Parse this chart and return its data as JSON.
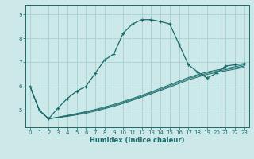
{
  "xlabel": "Humidex (Indice chaleur)",
  "bg_color": "#cce8e8",
  "grid_color": "#aad4d4",
  "line_color": "#1a6b6b",
  "xlim": [
    -0.5,
    23.5
  ],
  "ylim": [
    4.3,
    9.4
  ],
  "xticks": [
    0,
    1,
    2,
    3,
    4,
    5,
    6,
    7,
    8,
    9,
    10,
    11,
    12,
    13,
    14,
    15,
    16,
    17,
    18,
    19,
    20,
    21,
    22,
    23
  ],
  "yticks": [
    5,
    6,
    7,
    8,
    9
  ],
  "curve1_x": [
    0,
    1,
    2,
    3,
    4,
    5,
    6,
    7,
    8,
    9,
    10,
    11,
    12,
    13,
    14,
    15,
    16,
    17,
    18,
    19,
    20,
    21,
    22,
    23
  ],
  "curve1_y": [
    6.0,
    5.0,
    4.65,
    5.1,
    5.5,
    5.8,
    6.0,
    6.55,
    7.1,
    7.35,
    8.22,
    8.6,
    8.78,
    8.78,
    8.7,
    8.6,
    7.75,
    6.9,
    6.6,
    6.35,
    6.55,
    6.85,
    6.9,
    6.95
  ],
  "curve2_x": [
    0,
    1,
    2,
    3,
    4,
    5,
    6,
    7,
    8,
    9,
    10,
    11,
    12,
    13,
    14,
    15,
    16,
    17,
    18,
    19,
    20,
    21,
    22,
    23
  ],
  "curve2_y": [
    6.0,
    5.0,
    4.65,
    4.72,
    4.79,
    4.87,
    4.95,
    5.04,
    5.14,
    5.25,
    5.37,
    5.5,
    5.63,
    5.77,
    5.92,
    6.07,
    6.22,
    6.37,
    6.49,
    6.6,
    6.68,
    6.75,
    6.82,
    6.9
  ],
  "curve3_x": [
    0,
    1,
    2,
    3,
    4,
    5,
    6,
    7,
    8,
    9,
    10,
    11,
    12,
    13,
    14,
    15,
    16,
    17,
    18,
    19,
    20,
    21,
    22,
    23
  ],
  "curve3_y": [
    6.0,
    5.0,
    4.65,
    4.71,
    4.77,
    4.84,
    4.92,
    5.01,
    5.1,
    5.21,
    5.33,
    5.46,
    5.59,
    5.73,
    5.87,
    6.02,
    6.17,
    6.32,
    6.44,
    6.55,
    6.63,
    6.7,
    6.77,
    6.85
  ],
  "curve4_x": [
    0,
    1,
    2,
    3,
    4,
    5,
    6,
    7,
    8,
    9,
    10,
    11,
    12,
    13,
    14,
    15,
    16,
    17,
    18,
    19,
    20,
    21,
    22,
    23
  ],
  "curve4_y": [
    6.0,
    5.0,
    4.65,
    4.7,
    4.75,
    4.81,
    4.88,
    4.97,
    5.07,
    5.17,
    5.29,
    5.42,
    5.55,
    5.69,
    5.83,
    5.97,
    6.12,
    6.27,
    6.39,
    6.5,
    6.58,
    6.65,
    6.72,
    6.8
  ]
}
